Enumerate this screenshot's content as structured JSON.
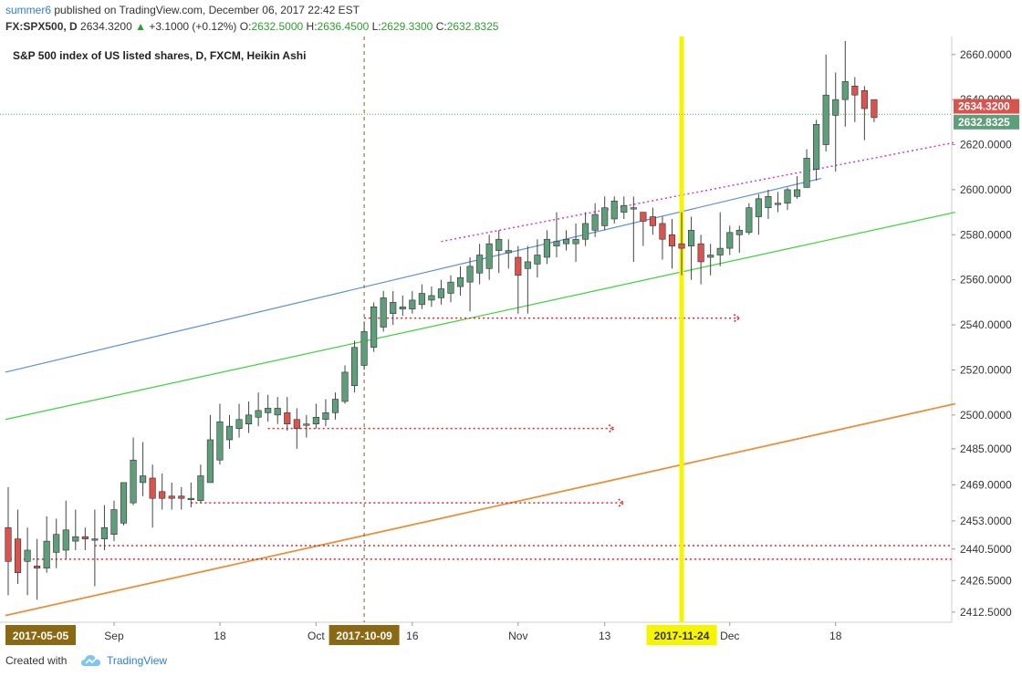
{
  "header": {
    "author": "summer6",
    "published": "published on TradingView.com, December 06, 2017 22:42 EST",
    "symbol": "FX:SPX500, D",
    "last": "2634.3200",
    "change": "+3.1000 (+0.12%)",
    "o_label": "O:",
    "o_value": "2632.5000",
    "h_label": "H:",
    "h_value": "2636.4500",
    "l_label": "L:",
    "l_value": "2629.3300",
    "c_label": "C:",
    "c_value": "2632.8325"
  },
  "footer": {
    "created": "Created with",
    "brand": "TradingView"
  },
  "chart_data": {
    "type": "candlestick",
    "title": "S&P 500 index of US listed shares, D, FXCM, Heikin Ashi",
    "y_ticks": [
      2412.5,
      2426.5,
      2440.5,
      2453.0,
      2469.0,
      2485.0,
      2500.0,
      2520.0,
      2540.0,
      2560.0,
      2580.0,
      2600.0,
      2620.0,
      2640.0,
      2660.0
    ],
    "ylim": [
      2408,
      2668
    ],
    "x_labels": [
      {
        "label": "2017-05-05",
        "i": 0,
        "highlight": true
      },
      {
        "label": "Sep",
        "i": 11
      },
      {
        "label": "18",
        "i": 22
      },
      {
        "label": "Oct",
        "i": 32
      },
      {
        "label": "2017-10-09",
        "i": 37,
        "highlight": true
      },
      {
        "label": "16",
        "i": 42
      },
      {
        "label": "Nov",
        "i": 53
      },
      {
        "label": "13",
        "i": 62
      },
      {
        "label": "2017-11-24",
        "i": 70,
        "highlight": true
      },
      {
        "label": "Dec",
        "i": 75
      },
      {
        "label": "18",
        "i": 86
      }
    ],
    "price_labels": [
      {
        "value": "2634.3200",
        "color": "#d9534f"
      },
      {
        "value": "2632.8325",
        "color": "#5f9e7a"
      }
    ],
    "candles": [
      [
        2450,
        2435,
        2468,
        2420
      ],
      [
        2445,
        2430,
        2458,
        2425
      ],
      [
        2435,
        2440,
        2450,
        2420
      ],
      [
        2433,
        2432,
        2445,
        2418
      ],
      [
        2432,
        2444,
        2455,
        2430
      ],
      [
        2439,
        2447,
        2454,
        2432
      ],
      [
        2440,
        2449,
        2462,
        2436
      ],
      [
        2444,
        2446,
        2458,
        2440
      ],
      [
        2446,
        2445,
        2450,
        2440
      ],
      [
        2445,
        2445,
        2458,
        2424
      ],
      [
        2445,
        2450,
        2460,
        2440
      ],
      [
        2447,
        2458,
        2462,
        2444
      ],
      [
        2452,
        2470,
        2470,
        2451
      ],
      [
        2461,
        2480,
        2490,
        2460
      ],
      [
        2470,
        2473,
        2488,
        2464
      ],
      [
        2472,
        2463,
        2478,
        2450
      ],
      [
        2466,
        2463,
        2474,
        2458
      ],
      [
        2464,
        2463,
        2470,
        2458
      ],
      [
        2464,
        2463,
        2468,
        2458
      ],
      [
        2463,
        2463,
        2470,
        2459
      ],
      [
        2462,
        2473,
        2478,
        2461
      ],
      [
        2470,
        2489,
        2500,
        2470
      ],
      [
        2480,
        2497,
        2505,
        2478
      ],
      [
        2489,
        2495,
        2500,
        2485
      ],
      [
        2494,
        2498,
        2505,
        2490
      ],
      [
        2496,
        2500,
        2506,
        2492
      ],
      [
        2499,
        2502,
        2510,
        2495
      ],
      [
        2501,
        2503,
        2509,
        2497
      ],
      [
        2500,
        2503,
        2508,
        2496
      ],
      [
        2501,
        2496,
        2508,
        2493
      ],
      [
        2498,
        2494,
        2503,
        2485
      ],
      [
        2496,
        2496,
        2500,
        2490
      ],
      [
        2496,
        2499,
        2505,
        2494
      ],
      [
        2498,
        2501,
        2507,
        2495
      ],
      [
        2501,
        2507,
        2510,
        2498
      ],
      [
        2506,
        2519,
        2522,
        2505
      ],
      [
        2513,
        2530,
        2533,
        2510
      ],
      [
        2522,
        2537,
        2541,
        2520
      ],
      [
        2530,
        2548,
        2550,
        2528
      ],
      [
        2539,
        2552,
        2555,
        2537
      ],
      [
        2545,
        2550,
        2555,
        2540
      ],
      [
        2547,
        2548,
        2553,
        2544
      ],
      [
        2547,
        2551,
        2555,
        2545
      ],
      [
        2549,
        2554,
        2558,
        2547
      ],
      [
        2551,
        2553,
        2557,
        2548
      ],
      [
        2552,
        2556,
        2560,
        2549
      ],
      [
        2554,
        2559,
        2562,
        2550
      ],
      [
        2557,
        2561,
        2566,
        2553
      ],
      [
        2559,
        2566,
        2570,
        2546
      ],
      [
        2563,
        2571,
        2576,
        2558
      ],
      [
        2565,
        2576,
        2580,
        2560
      ],
      [
        2573,
        2578,
        2582,
        2563
      ],
      [
        2572,
        2573,
        2578,
        2565
      ],
      [
        2570,
        2562,
        2575,
        2545
      ],
      [
        2565,
        2568,
        2575,
        2545
      ],
      [
        2567,
        2571,
        2578,
        2561
      ],
      [
        2570,
        2578,
        2582,
        2567
      ],
      [
        2575,
        2577,
        2590,
        2570
      ],
      [
        2576,
        2578,
        2582,
        2573
      ],
      [
        2576,
        2578,
        2585,
        2568
      ],
      [
        2578,
        2585,
        2590,
        2575
      ],
      [
        2582,
        2589,
        2594,
        2579
      ],
      [
        2584,
        2592,
        2597,
        2582
      ],
      [
        2587,
        2595,
        2597,
        2585
      ],
      [
        2590,
        2593,
        2597,
        2587
      ],
      [
        2592,
        2592,
        2597,
        2568
      ],
      [
        2590,
        2586,
        2590,
        2575
      ],
      [
        2588,
        2584,
        2592,
        2580
      ],
      [
        2585,
        2578,
        2588,
        2569
      ],
      [
        2580,
        2575,
        2587,
        2565
      ],
      [
        2576,
        2574,
        2590,
        2562
      ],
      [
        2575,
        2582,
        2588,
        2560
      ],
      [
        2576,
        2568,
        2580,
        2558
      ],
      [
        2570,
        2571,
        2576,
        2562
      ],
      [
        2571,
        2574,
        2590,
        2566
      ],
      [
        2574,
        2581,
        2584,
        2571
      ],
      [
        2580,
        2582,
        2584,
        2572
      ],
      [
        2581,
        2592,
        2594,
        2580
      ],
      [
        2588,
        2596,
        2598,
        2580
      ],
      [
        2592,
        2597,
        2600,
        2587
      ],
      [
        2594,
        2594,
        2599,
        2590
      ],
      [
        2594,
        2600,
        2601,
        2591
      ],
      [
        2597,
        2600,
        2606,
        2596
      ],
      [
        2601,
        2614,
        2618,
        2601
      ],
      [
        2609,
        2629,
        2631,
        2604
      ],
      [
        2620,
        2642,
        2660,
        2617
      ],
      [
        2633,
        2640,
        2652,
        2608
      ],
      [
        2640,
        2648,
        2666,
        2628
      ],
      [
        2646,
        2642,
        2650,
        2630
      ],
      [
        2644,
        2636,
        2646,
        2622
      ],
      [
        2640,
        2632,
        2638,
        2630
      ]
    ]
  }
}
